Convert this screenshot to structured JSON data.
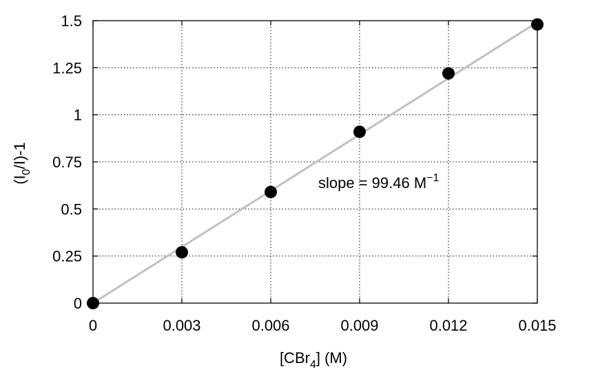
{
  "chart_data": {
    "type": "scatter",
    "title": "",
    "xlabel": {
      "prefix": "[CBr",
      "sub": "4",
      "suffix": "] (M)"
    },
    "ylabel": {
      "prefix": "(I",
      "sub": "0",
      "suffix": "/I)-1"
    },
    "xlim": [
      0,
      0.015
    ],
    "ylim": [
      0,
      1.5
    ],
    "x_ticks": [
      {
        "value": 0,
        "label": "0"
      },
      {
        "value": 0.003,
        "label": "0.003"
      },
      {
        "value": 0.006,
        "label": "0.006"
      },
      {
        "value": 0.009,
        "label": "0.009"
      },
      {
        "value": 0.012,
        "label": "0.012"
      },
      {
        "value": 0.015,
        "label": "0.015"
      }
    ],
    "y_ticks": [
      {
        "value": 0,
        "label": "0"
      },
      {
        "value": 0.25,
        "label": "0.25"
      },
      {
        "value": 0.5,
        "label": "0.5"
      },
      {
        "value": 0.75,
        "label": "0.75"
      },
      {
        "value": 1,
        "label": "1"
      },
      {
        "value": 1.25,
        "label": "1.25"
      },
      {
        "value": 1.5,
        "label": "1.5"
      }
    ],
    "grid": true,
    "series": [
      {
        "points": [
          {
            "x": 0,
            "y": 0.0
          },
          {
            "x": 0.003,
            "y": 0.27
          },
          {
            "x": 0.006,
            "y": 0.59
          },
          {
            "x": 0.009,
            "y": 0.91
          },
          {
            "x": 0.012,
            "y": 1.22
          },
          {
            "x": 0.015,
            "y": 1.48
          }
        ],
        "color": "#000000"
      }
    ],
    "fit_line": {
      "slope": 99.46,
      "intercept": 0,
      "color": "#c0c0c0"
    },
    "annotation": {
      "text": "slope = 99.46 M",
      "superscript": "−1"
    }
  }
}
